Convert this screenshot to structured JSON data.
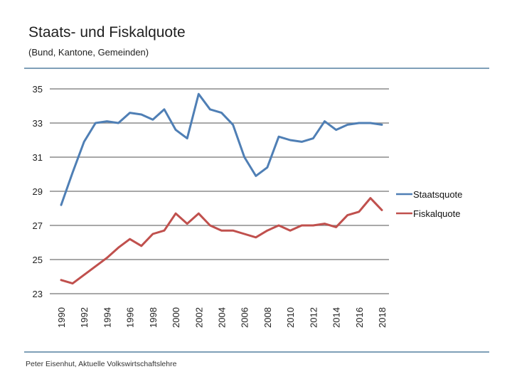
{
  "header": {
    "title": "Staats- und Fiskalquote",
    "subtitle": "(Bund, Kantone, Gemeinden)"
  },
  "footer": {
    "credit": "Peter Eisenhut, Aktuelle Volkswirtschaftslehre"
  },
  "colors": {
    "staatsquote": "#4f7fb5",
    "fiskalquote": "#c0504d",
    "grid": "#8c8c8c",
    "rule": "#7f9fb8"
  },
  "chart_data": {
    "type": "line",
    "title": "Staats- und Fiskalquote",
    "subtitle": "(Bund, Kantone, Gemeinden)",
    "xlabel": "",
    "ylabel": "",
    "ylim": [
      23,
      35
    ],
    "yticks": [
      23,
      25,
      27,
      29,
      31,
      33,
      35
    ],
    "grid": true,
    "legend_position": "right",
    "x": [
      1990,
      1991,
      1992,
      1993,
      1994,
      1995,
      1996,
      1997,
      1998,
      1999,
      2000,
      2001,
      2002,
      2003,
      2004,
      2005,
      2006,
      2007,
      2008,
      2009,
      2010,
      2011,
      2012,
      2013,
      2014,
      2015,
      2016,
      2017,
      2018
    ],
    "xtick_labels": [
      "1990",
      "1992",
      "1994",
      "1996",
      "1998",
      "2000",
      "2002",
      "2004",
      "2006",
      "2008",
      "2010",
      "2012",
      "2014",
      "2016",
      "2018"
    ],
    "series": [
      {
        "name": "Staatsquote",
        "values": [
          28.2,
          30.1,
          31.9,
          33.0,
          33.1,
          33.0,
          33.6,
          33.5,
          33.2,
          33.8,
          32.6,
          32.1,
          34.7,
          33.8,
          33.6,
          32.9,
          31.0,
          29.9,
          30.4,
          32.2,
          32.0,
          31.9,
          32.1,
          33.1,
          32.6,
          32.9,
          33.0,
          33.0,
          32.9
        ]
      },
      {
        "name": "Fiskalquote",
        "values": [
          23.8,
          23.6,
          24.1,
          24.6,
          25.1,
          25.7,
          26.2,
          25.8,
          26.5,
          26.7,
          27.7,
          27.1,
          27.7,
          27.0,
          26.7,
          26.7,
          26.5,
          26.3,
          26.7,
          27.0,
          26.7,
          27.0,
          27.0,
          27.1,
          26.9,
          27.6,
          27.8,
          28.6,
          27.9
        ]
      }
    ]
  }
}
